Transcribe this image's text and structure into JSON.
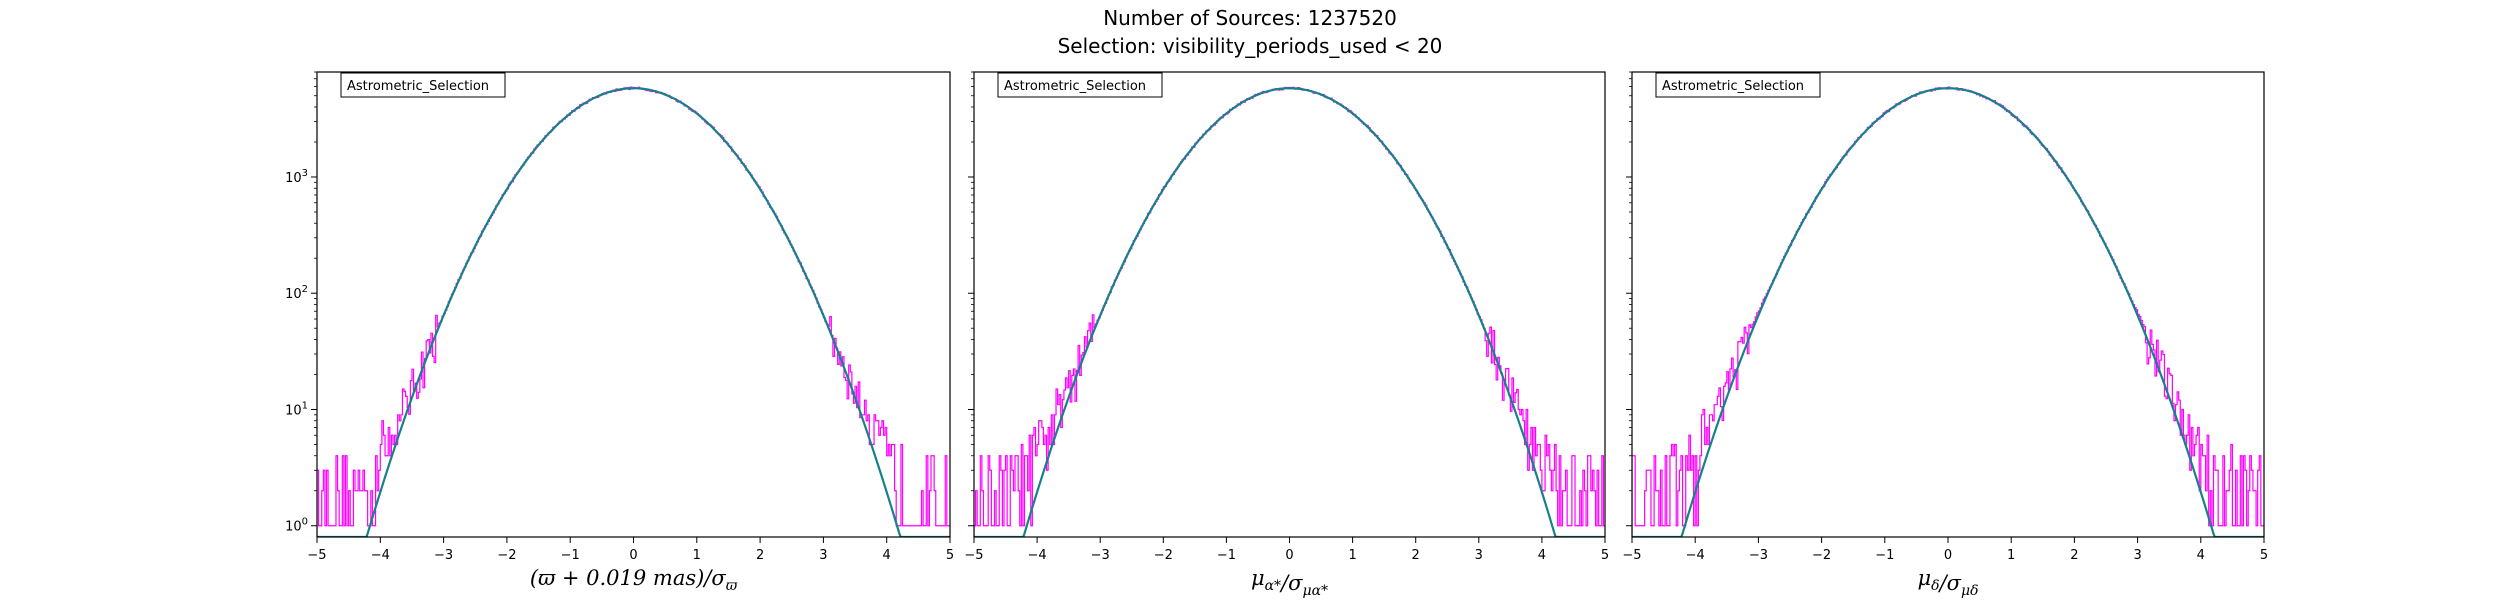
{
  "figure": {
    "title": "Number of Sources: 1237520",
    "subtitle": "Selection: visibility_periods_used < 20"
  },
  "colors": {
    "histogram": "#ff00ff",
    "gaussian": "#17818a",
    "axes": "#000000"
  },
  "chart_data": [
    {
      "type": "histogram",
      "legend": "Astrometric_Selection",
      "legend_placement": "top-left",
      "xlabel": "(ϖ + 0.019 mas)/σ_ϖ",
      "ylabel": "",
      "xlim": [
        -5,
        5
      ],
      "ylim": [
        0.8,
        8000
      ],
      "yscale": "log",
      "xticks": [
        "-5",
        "-4",
        "-3",
        "-2",
        "-1",
        "0",
        "1",
        "2",
        "3",
        "4",
        "5"
      ],
      "yticks": [
        {
          "value": 1,
          "label": "10^0"
        },
        {
          "value": 10,
          "label": "10^1"
        },
        {
          "value": 100,
          "label": "10^2"
        },
        {
          "value": 1000,
          "label": "10^3"
        }
      ],
      "gaussian_peak": 5800,
      "series": [
        {
          "name": "",
          "x_range": [
            -5,
            5
          ],
          "bins": 400,
          "peak": 5800,
          "tail_floor": 1,
          "tail_start_sigma": 3.0
        }
      ]
    },
    {
      "type": "histogram",
      "legend": "Astrometric_Selection",
      "legend_placement": "top-left",
      "xlabel": "μ_α*/σ_μα*",
      "ylabel": "",
      "xlim": [
        -5,
        5
      ],
      "ylim": [
        0.8,
        8000
      ],
      "yscale": "log",
      "xticks": [
        "-5",
        "-4",
        "-3",
        "-2",
        "-1",
        "0",
        "1",
        "2",
        "3",
        "4",
        "5"
      ],
      "yticks": [
        {
          "value": 1,
          "label": "10^0"
        },
        {
          "value": 10,
          "label": "10^1"
        },
        {
          "value": 100,
          "label": "10^2"
        },
        {
          "value": 1000,
          "label": "10^3"
        }
      ],
      "gaussian_peak": 5800,
      "series": [
        {
          "name": "",
          "x_range": [
            -5,
            5
          ],
          "bins": 400,
          "peak": 5800,
          "tail_floor": 1,
          "tail_start_sigma": 3.0
        }
      ]
    },
    {
      "type": "histogram",
      "legend": "Astrometric_Selection",
      "legend_placement": "top-left",
      "xlabel": "μ_δ/σ_μδ",
      "ylabel": "",
      "xlim": [
        -5,
        5
      ],
      "ylim": [
        0.8,
        8000
      ],
      "yscale": "log",
      "xticks": [
        "-5",
        "-4",
        "-3",
        "-2",
        "-1",
        "0",
        "1",
        "2",
        "3",
        "4",
        "5"
      ],
      "yticks": [
        {
          "value": 1,
          "label": "10^0"
        },
        {
          "value": 10,
          "label": "10^1"
        },
        {
          "value": 100,
          "label": "10^2"
        },
        {
          "value": 1000,
          "label": "10^3"
        }
      ],
      "gaussian_peak": 5800,
      "series": [
        {
          "name": "",
          "x_range": [
            -5,
            5
          ],
          "bins": 400,
          "peak": 5800,
          "tail_floor": 1,
          "tail_start_sigma": 2.8
        }
      ]
    }
  ]
}
